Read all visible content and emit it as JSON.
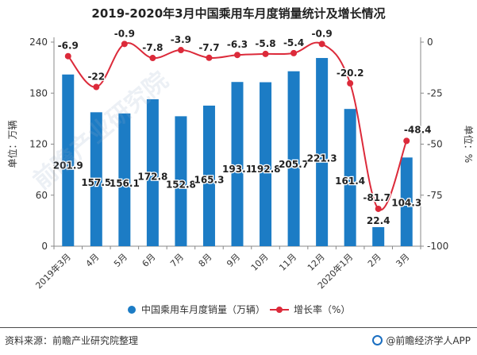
{
  "title": "2019-2020年3月中国乘用车月度销量统计及增长情况",
  "colors": {
    "bar": "#1c7cc5",
    "line": "#dc2a3a",
    "axis": "#888888",
    "text": "#333333"
  },
  "chart_data": {
    "type": "bar+line",
    "categories": [
      "2019年3月",
      "4月",
      "5月",
      "6月",
      "7月",
      "8月",
      "9月",
      "10月",
      "11月",
      "12月",
      "2020年1月",
      "2月",
      "3月"
    ],
    "series": [
      {
        "name": "中国乘用车月度销量（万辆）",
        "type": "bar",
        "axis": "left",
        "values": [
          201.9,
          157.5,
          156.1,
          172.8,
          152.8,
          165.3,
          193.1,
          192.8,
          205.7,
          221.3,
          161.4,
          22.4,
          104.3
        ]
      },
      {
        "name": "增长率（%）",
        "type": "line",
        "axis": "right",
        "values": [
          -6.9,
          -22,
          -0.9,
          -7.8,
          -3.9,
          -7.7,
          -6.3,
          -5.8,
          -5.4,
          -0.9,
          -20.2,
          -81.7,
          -48.4
        ]
      }
    ],
    "ylabel_left": "单位：万辆",
    "ylabel_right": "单位：%",
    "ylim_left": [
      0,
      240
    ],
    "ylim_right": [
      -100,
      0
    ],
    "yticks_left": [
      0,
      60,
      120,
      180,
      240
    ],
    "yticks_right": [
      0,
      -25,
      -50,
      -75,
      -100
    ],
    "grid": false,
    "legend_position": "bottom"
  },
  "footer": {
    "source": "资料来源：前瞻产业研究院整理",
    "brand": "@前瞻经济学人APP"
  },
  "watermark": "前瞻产业研究院"
}
